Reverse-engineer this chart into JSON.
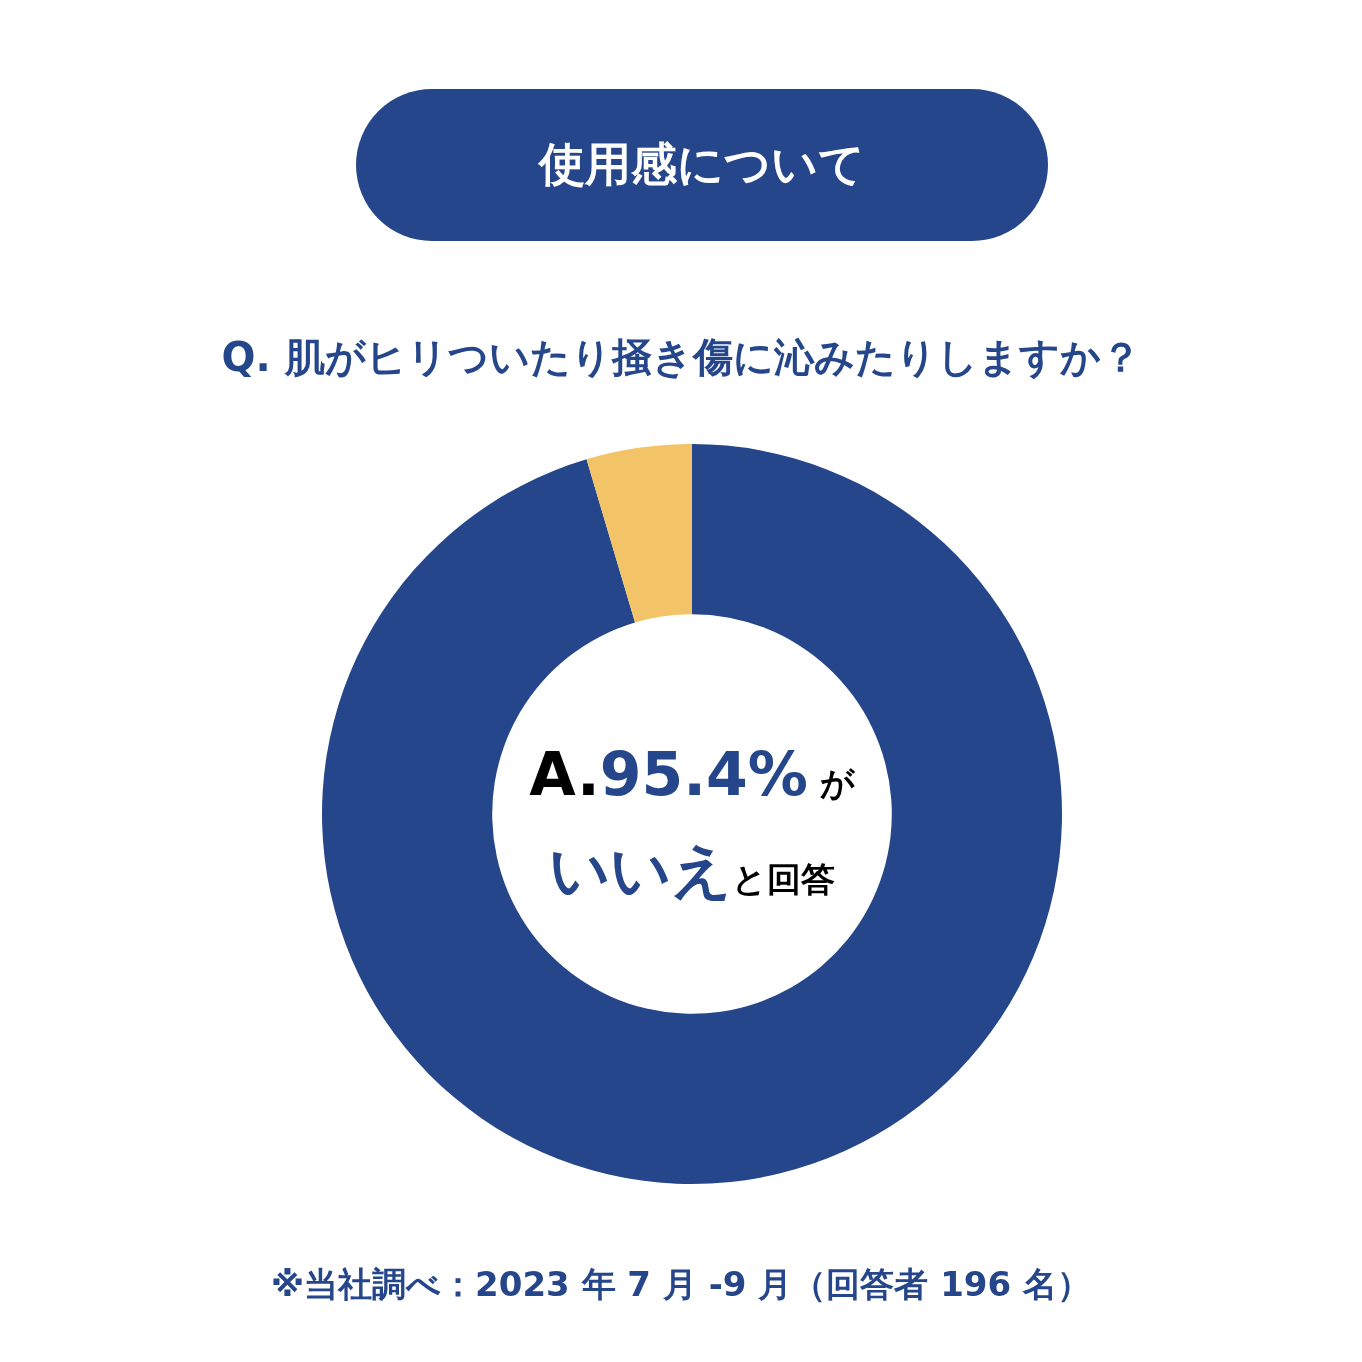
{
  "chart_data": {
    "type": "donut",
    "title": "使用感について",
    "subtitle": "Q. 肌がヒリついたり掻き傷に沁みたりしますか？",
    "categories": [
      "いいえ",
      null
    ],
    "values": [
      95.4,
      4.6
    ],
    "colors": [
      "#25468a",
      "#f2c467"
    ],
    "value_labels": [
      "95.4%",
      null
    ],
    "annotations": [
      "A.",
      "が",
      "と回答",
      "※当社調べ：2023 年 7 月 -9 月（回答者 196 名）"
    ],
    "legend": false
  }
}
